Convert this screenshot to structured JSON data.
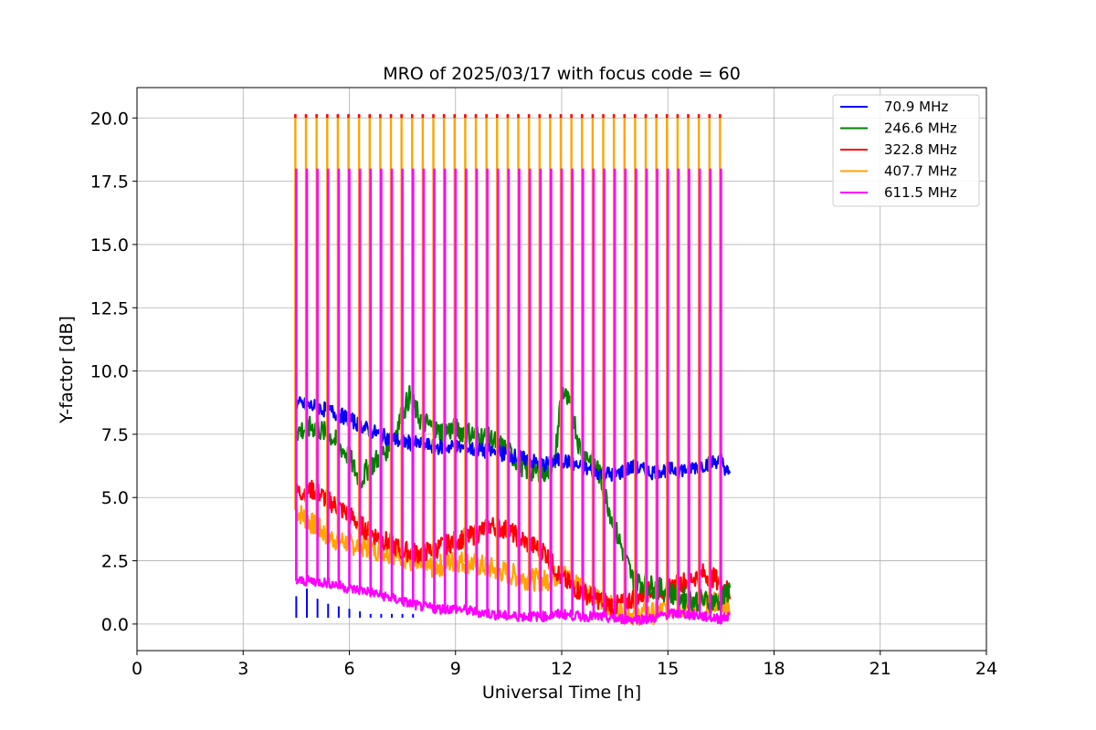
{
  "chart_data": {
    "type": "line",
    "title": "MRO of 2025/03/17 with focus code = 60",
    "xlabel": "Universal Time [h]",
    "ylabel": "Y-factor [dB]",
    "xlim": [
      0,
      24
    ],
    "ylim": [
      -1.05,
      21.2
    ],
    "xticks": [
      0,
      3,
      6,
      9,
      12,
      15,
      18,
      21,
      24
    ],
    "xtick_labels": [
      "0",
      "3",
      "6",
      "9",
      "12",
      "15",
      "18",
      "21",
      "24"
    ],
    "yticks": [
      0.0,
      2.5,
      5.0,
      7.5,
      10.0,
      12.5,
      15.0,
      17.5,
      20.0
    ],
    "ytick_labels": [
      "0.0",
      "2.5",
      "5.0",
      "7.5",
      "10.0",
      "12.5",
      "15.0",
      "17.5",
      "20.0"
    ],
    "grid": true,
    "legend_position": "top-right",
    "calibration_spikes": {
      "start_hour": 4.5,
      "end_hour": 16.5,
      "interval_hours": 0.3,
      "ymax_orange": 20.0,
      "ymax_magenta": 18.0
    },
    "series": [
      {
        "name": "70.9 MHz",
        "color": "#0000ff",
        "x": [
          4.5,
          5.0,
          5.5,
          6.0,
          6.5,
          7.0,
          7.5,
          8.0,
          8.5,
          9.0,
          9.5,
          10.0,
          10.5,
          11.0,
          11.5,
          12.0,
          12.5,
          13.0,
          13.5,
          14.0,
          14.5,
          15.0,
          15.5,
          16.0,
          16.5,
          16.75
        ],
        "y": [
          8.7,
          8.6,
          8.4,
          8.1,
          7.7,
          7.4,
          7.2,
          7.1,
          7.0,
          7.0,
          6.9,
          6.8,
          6.7,
          6.5,
          6.3,
          6.5,
          6.2,
          6.0,
          5.9,
          6.2,
          6.0,
          6.1,
          6.1,
          6.3,
          6.5,
          5.8
        ],
        "y_low_trace": [
          0.9,
          1.2,
          0.8,
          0.6,
          0.5,
          0.4,
          0.3,
          0.2,
          0.2,
          0.2,
          0.2,
          0.2
        ]
      },
      {
        "name": "246.6 MHz",
        "color": "#008000",
        "x": [
          4.5,
          5.0,
          5.5,
          6.0,
          6.3,
          6.5,
          7.0,
          7.3,
          7.7,
          8.0,
          8.5,
          9.0,
          9.5,
          10.0,
          10.5,
          11.0,
          11.5,
          11.8,
          12.0,
          12.3,
          12.5,
          13.0,
          13.5,
          14.0,
          14.5,
          15.0,
          15.5,
          16.0,
          16.5,
          16.75
        ],
        "y": [
          7.6,
          7.8,
          7.4,
          6.6,
          5.6,
          6.1,
          6.8,
          7.6,
          9.0,
          8.1,
          7.6,
          7.7,
          7.5,
          7.3,
          6.8,
          6.1,
          6.0,
          6.3,
          9.3,
          8.4,
          7.0,
          6.2,
          3.8,
          1.8,
          1.5,
          1.3,
          1.0,
          0.9,
          0.9,
          1.4
        ]
      },
      {
        "name": "322.8 MHz",
        "color": "#ff0000",
        "x": [
          4.5,
          5.0,
          5.5,
          6.0,
          6.5,
          7.0,
          7.5,
          8.0,
          8.5,
          9.0,
          9.5,
          10.0,
          10.5,
          11.0,
          11.5,
          12.0,
          12.5,
          13.0,
          13.5,
          14.0,
          14.5,
          15.0,
          15.5,
          16.0,
          16.5,
          16.75
        ],
        "y": [
          5.2,
          5.3,
          4.8,
          4.3,
          3.7,
          3.3,
          2.9,
          2.8,
          3.0,
          3.3,
          3.5,
          3.9,
          3.7,
          3.2,
          2.9,
          1.8,
          1.3,
          1.0,
          0.7,
          1.0,
          1.3,
          1.4,
          1.7,
          2.0,
          1.7,
          1.2
        ]
      },
      {
        "name": "407.7 MHz",
        "color": "#ffa500",
        "x": [
          4.5,
          5.0,
          5.5,
          6.0,
          6.5,
          7.0,
          7.5,
          8.0,
          8.5,
          9.0,
          9.5,
          10.0,
          10.5,
          11.0,
          11.5,
          12.0,
          12.5,
          13.0,
          13.5,
          14.0,
          14.5,
          15.0,
          15.5,
          16.0,
          16.5,
          16.75
        ],
        "y": [
          4.5,
          3.9,
          3.4,
          3.2,
          3.0,
          2.9,
          2.7,
          2.2,
          2.3,
          2.5,
          2.4,
          2.2,
          2.0,
          1.8,
          1.7,
          2.0,
          1.6,
          1.0,
          0.6,
          0.4,
          0.4,
          0.6,
          0.7,
          0.8,
          0.9,
          0.7
        ]
      },
      {
        "name": "611.5 MHz",
        "color": "#ff00ff",
        "x": [
          4.5,
          5.0,
          5.5,
          6.0,
          6.5,
          7.0,
          7.5,
          8.0,
          8.5,
          9.0,
          9.5,
          10.0,
          10.5,
          11.0,
          11.5,
          12.0,
          12.5,
          13.0,
          13.5,
          14.0,
          14.5,
          15.0,
          15.5,
          16.0,
          16.5,
          16.75
        ],
        "y": [
          1.7,
          1.7,
          1.6,
          1.4,
          1.3,
          1.1,
          0.9,
          0.7,
          0.6,
          0.6,
          0.5,
          0.4,
          0.3,
          0.3,
          0.3,
          0.4,
          0.3,
          0.3,
          0.2,
          0.2,
          0.2,
          0.4,
          0.4,
          0.3,
          0.2,
          0.3
        ]
      }
    ]
  }
}
